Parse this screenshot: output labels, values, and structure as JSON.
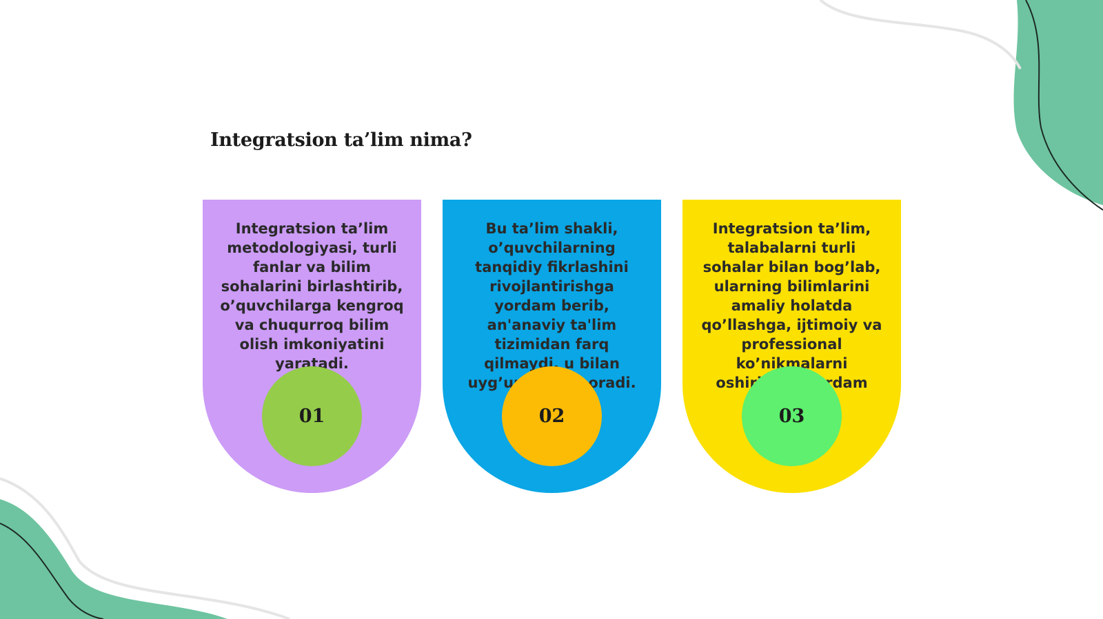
{
  "slide": {
    "title": "Integratsion ta’lim nima?"
  },
  "cards": [
    {
      "number": "01",
      "text": "Integratsion ta’lim metodologiyasi, turli fanlar va bilim sohalarini birlashtirib, o’quvchilarga kengroq va chuqurroq bilim olish imkoniyatini yaratadi.",
      "card_color": "#cc9cf7",
      "circle_color": "#95cc4a"
    },
    {
      "number": "02",
      "text": "Bu ta’lim shakli, o’quvchilarning tanqidiy fikrlashini rivojlantirishga yordam berib, an'anaviy ta'lim tizimidan farq qilmaydi, u bilan uyg’unlashib boradi.",
      "card_color": "#0aa6e6",
      "circle_color": "#fcbc06"
    },
    {
      "number": "03",
      "text": "Integratsion ta’lim, talabalarni turli sohalar bilan bog’lab, ularning bilimlarini amaliy holatda qo’llashga, ijtimoiy va professional ko’nikmalarni oshirishga yordam beradi.",
      "card_color": "#fce000",
      "circle_color": "#5ef06e"
    }
  ],
  "decor": {
    "wave_color": "#6ec4a0"
  }
}
